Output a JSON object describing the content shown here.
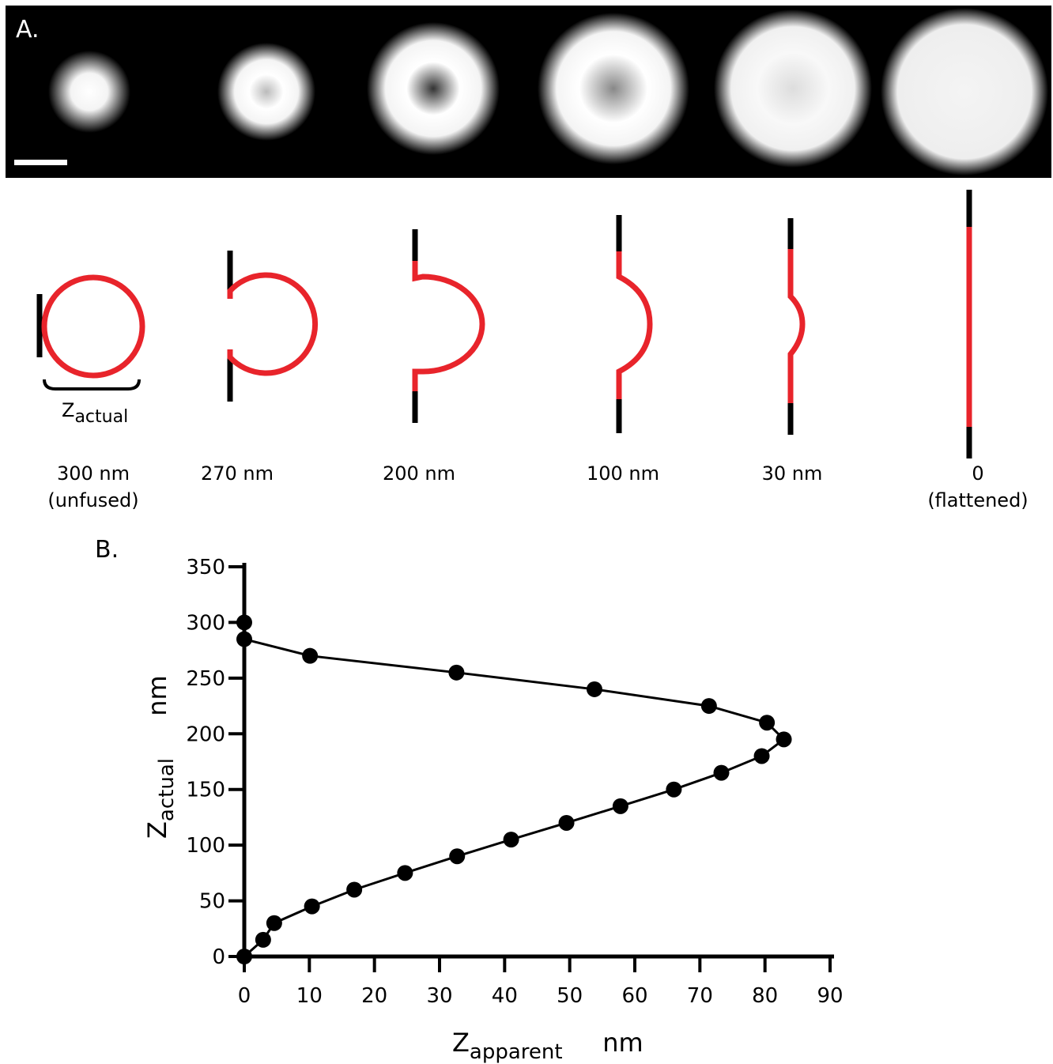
{
  "panel_a": {
    "label": "A.",
    "z_label": {
      "symbol": "Z",
      "subscript": "actual"
    },
    "stages": [
      {
        "lines": [
          "300 nm",
          "(unfused)"
        ]
      },
      {
        "lines": [
          "270 nm"
        ]
      },
      {
        "lines": [
          "200 nm"
        ]
      },
      {
        "lines": [
          "100 nm"
        ]
      },
      {
        "lines": [
          "30 nm"
        ]
      },
      {
        "lines": [
          "0",
          "(flattened)"
        ]
      }
    ]
  },
  "chart_data": {
    "type": "line",
    "panel_label": "B.",
    "xlabel": {
      "symbol": "Z",
      "subscript": "apparent",
      "unit": "nm"
    },
    "ylabel": {
      "symbol": "Z",
      "subscript": "actual",
      "unit": "nm"
    },
    "x": [
      0,
      0,
      10.1,
      32.6,
      53.8,
      71.4,
      80.3,
      82.9,
      79.5,
      73.3,
      66.0,
      57.8,
      49.5,
      41.0,
      32.7,
      24.7,
      16.9,
      10.4,
      4.6,
      2.9,
      0
    ],
    "values": [
      300,
      285,
      270,
      255,
      240,
      225,
      210,
      195,
      180,
      165,
      150,
      135,
      120,
      105,
      90,
      75,
      60,
      45,
      30,
      15,
      0
    ],
    "color": "#000000",
    "xlim": [
      0,
      90
    ],
    "xticks": [
      0,
      10,
      20,
      30,
      40,
      50,
      60,
      70,
      80,
      90
    ],
    "ylim": [
      0,
      350
    ],
    "yticks": [
      0,
      50,
      100,
      150,
      200,
      250,
      300,
      350
    ]
  }
}
